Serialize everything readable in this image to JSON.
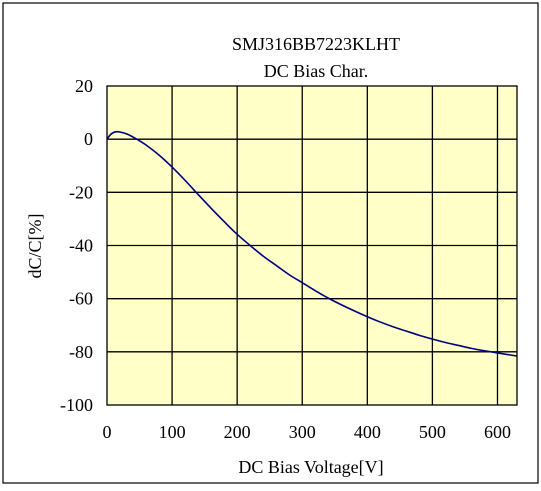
{
  "chart_data": {
    "type": "line",
    "title": "SMJ316BB7223KLHT",
    "subtitle": "DC Bias Char.",
    "xlabel": "DC Bias Voltage[V]",
    "ylabel": "dC/C[%]",
    "xlim": [
      0,
      630
    ],
    "ylim": [
      -100,
      20
    ],
    "x_ticks": [
      0,
      100,
      200,
      300,
      400,
      500,
      600
    ],
    "y_ticks": [
      20,
      0,
      -20,
      -40,
      -60,
      -80,
      -100
    ],
    "grid": true,
    "plot_background": "#ffffc8",
    "line_color": "#000080",
    "series": [
      {
        "x": [
          0,
          5,
          10,
          15,
          20,
          30,
          40,
          50,
          60,
          80,
          100,
          120,
          140,
          160,
          180,
          200,
          220,
          240,
          260,
          280,
          300,
          320,
          340,
          360,
          380,
          400,
          420,
          440,
          460,
          480,
          500,
          520,
          540,
          560,
          580,
          600,
          620,
          630
        ],
        "y": [
          0,
          1.6,
          2.5,
          2.8,
          2.7,
          2.0,
          0.8,
          -0.6,
          -2.2,
          -6.0,
          -10.5,
          -15.5,
          -20.8,
          -26.0,
          -31.0,
          -35.8,
          -40.0,
          -44.0,
          -47.5,
          -51.0,
          -54.0,
          -57.0,
          -59.8,
          -62.3,
          -64.6,
          -66.8,
          -68.8,
          -70.6,
          -72.2,
          -73.8,
          -75.2,
          -76.5,
          -77.6,
          -78.7,
          -79.6,
          -80.4,
          -81.2,
          -81.6
        ]
      }
    ]
  }
}
